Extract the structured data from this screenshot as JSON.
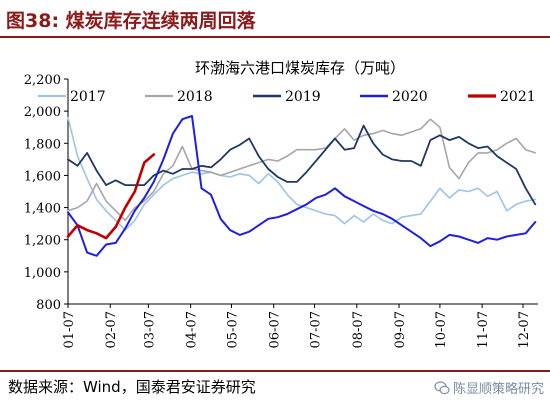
{
  "header": {
    "title": "图38: 煤炭库存连续两周回落"
  },
  "footer": {
    "source": "数据来源：Wind，国泰君安证券研究",
    "watermark": "陈显顺策略研究"
  },
  "chart_data": {
    "type": "line",
    "title": "环渤海六港口煤炭库存（万吨）",
    "xlabel": "",
    "ylabel": "",
    "ylim": [
      800,
      2200
    ],
    "yticks": [
      800,
      1000,
      1200,
      1400,
      1600,
      1800,
      2000,
      2200
    ],
    "yticklabels": [
      "800",
      "1,000",
      "1,200",
      "1,400",
      "1,600",
      "1,800",
      "2,000",
      "2,200"
    ],
    "xticks": [
      {
        "label": "01-07",
        "x": 1
      },
      {
        "label": "02-07",
        "x": 32
      },
      {
        "label": "03-07",
        "x": 60
      },
      {
        "label": "04-07",
        "x": 91
      },
      {
        "label": "05-07",
        "x": 121
      },
      {
        "label": "06-07",
        "x": 152
      },
      {
        "label": "07-07",
        "x": 182
      },
      {
        "label": "08-07",
        "x": 213
      },
      {
        "label": "09-07",
        "x": 244
      },
      {
        "label": "10-07",
        "x": 274
      },
      {
        "label": "11-07",
        "x": 305
      },
      {
        "label": "12-07",
        "x": 335
      }
    ],
    "xlim": [
      1,
      346
    ],
    "legend": "top",
    "grid": false,
    "series": [
      {
        "name": "2017",
        "color": "#9ec3e6",
        "width": 1.6,
        "points": [
          [
            1,
            1960
          ],
          [
            8,
            1720
          ],
          [
            15,
            1580
          ],
          [
            22,
            1450
          ],
          [
            29,
            1380
          ],
          [
            36,
            1320
          ],
          [
            43,
            1260
          ],
          [
            50,
            1320
          ],
          [
            57,
            1420
          ],
          [
            64,
            1480
          ],
          [
            71,
            1540
          ],
          [
            78,
            1580
          ],
          [
            85,
            1600
          ],
          [
            92,
            1620
          ],
          [
            99,
            1610
          ],
          [
            106,
            1620
          ],
          [
            113,
            1600
          ],
          [
            120,
            1590
          ],
          [
            127,
            1610
          ],
          [
            134,
            1600
          ],
          [
            141,
            1550
          ],
          [
            148,
            1610
          ],
          [
            155,
            1560
          ],
          [
            162,
            1480
          ],
          [
            169,
            1420
          ],
          [
            176,
            1400
          ],
          [
            183,
            1380
          ],
          [
            190,
            1360
          ],
          [
            197,
            1350
          ],
          [
            204,
            1300
          ],
          [
            211,
            1350
          ],
          [
            218,
            1310
          ],
          [
            225,
            1360
          ],
          [
            232,
            1320
          ],
          [
            239,
            1300
          ],
          [
            246,
            1340
          ],
          [
            253,
            1350
          ],
          [
            260,
            1360
          ],
          [
            267,
            1440
          ],
          [
            274,
            1520
          ],
          [
            281,
            1460
          ],
          [
            288,
            1510
          ],
          [
            295,
            1500
          ],
          [
            302,
            1520
          ],
          [
            309,
            1470
          ],
          [
            316,
            1500
          ],
          [
            323,
            1380
          ],
          [
            330,
            1420
          ],
          [
            337,
            1440
          ],
          [
            344,
            1450
          ]
        ]
      },
      {
        "name": "2018",
        "color": "#a6a6a6",
        "width": 1.6,
        "points": [
          [
            1,
            1380
          ],
          [
            8,
            1400
          ],
          [
            15,
            1440
          ],
          [
            22,
            1550
          ],
          [
            29,
            1440
          ],
          [
            36,
            1380
          ],
          [
            43,
            1320
          ],
          [
            50,
            1400
          ],
          [
            57,
            1440
          ],
          [
            64,
            1500
          ],
          [
            71,
            1610
          ],
          [
            78,
            1660
          ],
          [
            85,
            1780
          ],
          [
            92,
            1640
          ],
          [
            99,
            1630
          ],
          [
            106,
            1620
          ],
          [
            113,
            1600
          ],
          [
            120,
            1620
          ],
          [
            127,
            1640
          ],
          [
            134,
            1660
          ],
          [
            141,
            1680
          ],
          [
            148,
            1700
          ],
          [
            155,
            1690
          ],
          [
            162,
            1720
          ],
          [
            169,
            1760
          ],
          [
            176,
            1760
          ],
          [
            183,
            1760
          ],
          [
            190,
            1770
          ],
          [
            197,
            1830
          ],
          [
            204,
            1890
          ],
          [
            211,
            1820
          ],
          [
            218,
            1850
          ],
          [
            225,
            1860
          ],
          [
            232,
            1880
          ],
          [
            239,
            1860
          ],
          [
            246,
            1850
          ],
          [
            253,
            1870
          ],
          [
            260,
            1890
          ],
          [
            267,
            1950
          ],
          [
            274,
            1900
          ],
          [
            281,
            1650
          ],
          [
            288,
            1580
          ],
          [
            295,
            1680
          ],
          [
            302,
            1740
          ],
          [
            309,
            1740
          ],
          [
            316,
            1760
          ],
          [
            323,
            1800
          ],
          [
            330,
            1830
          ],
          [
            337,
            1760
          ],
          [
            344,
            1740
          ]
        ]
      },
      {
        "name": "2019",
        "color": "#1f3864",
        "width": 1.8,
        "points": [
          [
            1,
            1700
          ],
          [
            8,
            1660
          ],
          [
            15,
            1740
          ],
          [
            22,
            1630
          ],
          [
            29,
            1540
          ],
          [
            36,
            1570
          ],
          [
            43,
            1540
          ],
          [
            50,
            1540
          ],
          [
            57,
            1540
          ],
          [
            64,
            1600
          ],
          [
            71,
            1630
          ],
          [
            78,
            1610
          ],
          [
            85,
            1640
          ],
          [
            92,
            1640
          ],
          [
            99,
            1660
          ],
          [
            106,
            1650
          ],
          [
            113,
            1700
          ],
          [
            120,
            1760
          ],
          [
            127,
            1790
          ],
          [
            134,
            1830
          ],
          [
            141,
            1720
          ],
          [
            148,
            1640
          ],
          [
            155,
            1590
          ],
          [
            162,
            1560
          ],
          [
            169,
            1560
          ],
          [
            176,
            1620
          ],
          [
            183,
            1690
          ],
          [
            190,
            1760
          ],
          [
            197,
            1830
          ],
          [
            204,
            1760
          ],
          [
            211,
            1770
          ],
          [
            218,
            1910
          ],
          [
            225,
            1800
          ],
          [
            232,
            1730
          ],
          [
            239,
            1700
          ],
          [
            246,
            1690
          ],
          [
            253,
            1690
          ],
          [
            260,
            1660
          ],
          [
            267,
            1820
          ],
          [
            274,
            1850
          ],
          [
            281,
            1820
          ],
          [
            288,
            1840
          ],
          [
            295,
            1800
          ],
          [
            302,
            1770
          ],
          [
            309,
            1780
          ],
          [
            316,
            1720
          ],
          [
            323,
            1680
          ],
          [
            330,
            1640
          ],
          [
            337,
            1520
          ],
          [
            344,
            1420
          ]
        ]
      },
      {
        "name": "2020",
        "color": "#1f1fe0",
        "width": 2,
        "points": [
          [
            1,
            1370
          ],
          [
            8,
            1290
          ],
          [
            15,
            1120
          ],
          [
            22,
            1100
          ],
          [
            29,
            1170
          ],
          [
            36,
            1180
          ],
          [
            43,
            1270
          ],
          [
            50,
            1380
          ],
          [
            57,
            1460
          ],
          [
            64,
            1560
          ],
          [
            71,
            1700
          ],
          [
            78,
            1860
          ],
          [
            85,
            1950
          ],
          [
            92,
            1970
          ],
          [
            99,
            1520
          ],
          [
            106,
            1480
          ],
          [
            113,
            1330
          ],
          [
            120,
            1260
          ],
          [
            127,
            1230
          ],
          [
            134,
            1250
          ],
          [
            141,
            1290
          ],
          [
            148,
            1330
          ],
          [
            155,
            1340
          ],
          [
            162,
            1360
          ],
          [
            169,
            1390
          ],
          [
            176,
            1420
          ],
          [
            183,
            1460
          ],
          [
            190,
            1480
          ],
          [
            197,
            1520
          ],
          [
            204,
            1470
          ],
          [
            211,
            1440
          ],
          [
            218,
            1410
          ],
          [
            225,
            1380
          ],
          [
            232,
            1360
          ],
          [
            239,
            1330
          ],
          [
            246,
            1290
          ],
          [
            253,
            1250
          ],
          [
            260,
            1210
          ],
          [
            267,
            1160
          ],
          [
            274,
            1190
          ],
          [
            281,
            1230
          ],
          [
            288,
            1220
          ],
          [
            295,
            1200
          ],
          [
            302,
            1180
          ],
          [
            309,
            1210
          ],
          [
            316,
            1200
          ],
          [
            323,
            1220
          ],
          [
            330,
            1230
          ],
          [
            337,
            1240
          ],
          [
            344,
            1310
          ]
        ]
      },
      {
        "name": "2021",
        "color": "#c00000",
        "width": 2.6,
        "points": [
          [
            1,
            1220
          ],
          [
            8,
            1290
          ],
          [
            15,
            1260
          ],
          [
            22,
            1240
          ],
          [
            29,
            1210
          ],
          [
            36,
            1280
          ],
          [
            43,
            1400
          ],
          [
            50,
            1500
          ],
          [
            57,
            1680
          ],
          [
            64,
            1730
          ]
        ]
      }
    ]
  }
}
